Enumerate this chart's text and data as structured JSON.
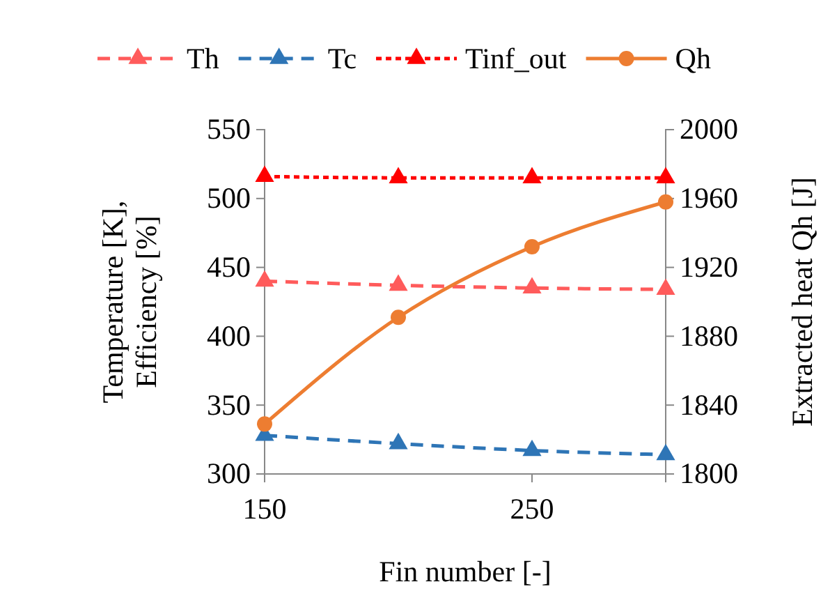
{
  "chart_data": {
    "type": "line",
    "xlabel": "Fin number [-]",
    "ylabel": "Temperature [K],\nEfficiency [%]",
    "y2label": "Extracted heat Qh [J]",
    "x": [
      150,
      200,
      250,
      300
    ],
    "xlim": [
      150,
      300
    ],
    "xticks": [
      150,
      250
    ],
    "ylim": [
      300,
      550
    ],
    "yticks": [
      300,
      350,
      400,
      450,
      500,
      550
    ],
    "y2lim": [
      1800,
      2000
    ],
    "y2ticks": [
      1800,
      1840,
      1880,
      1920,
      1960,
      2000
    ],
    "legend": "top",
    "grid": false,
    "series": [
      {
        "name": "Th",
        "color": "#ff5b5b",
        "values": [
          440,
          437,
          435,
          434
        ],
        "marker": "triangle",
        "line_style": "dashed"
      },
      {
        "name": "Tc",
        "color": "#2e75b6",
        "values": [
          328,
          322,
          317,
          314
        ],
        "marker": "triangle",
        "line_style": "dashed"
      },
      {
        "name": "Tinf_out",
        "color": "#ff0000",
        "values": [
          516,
          515,
          515,
          515
        ],
        "marker": "triangle",
        "line_style": "dotted"
      },
      {
        "name": "Qh",
        "color": "#ed7d31",
        "values": [
          1829,
          1891,
          1932,
          1958
        ],
        "marker": "circle",
        "line_style": "solid",
        "axis": "y2"
      }
    ]
  }
}
